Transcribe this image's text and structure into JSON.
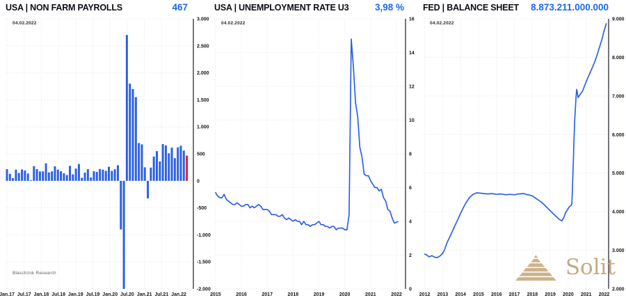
{
  "branding": {
    "research_label": "Blaschzok Research",
    "logo_text": "Solit",
    "logo_color": "#cdb28a"
  },
  "charts": [
    {
      "title": "USA | NON FARM PAYROLLS",
      "value": "467",
      "date_label": "04.02.2022",
      "chart_data": {
        "type": "bar",
        "title": "USA | NON FARM PAYROLLS",
        "latest_value": 467,
        "unit": "thousands (monthly change)",
        "ylim": [
          -2000,
          3000
        ],
        "y_tick_labels": [
          "3.000",
          "2.500",
          "2.000",
          "1.500",
          "1.000",
          "500",
          "0",
          "-500",
          "-1.000",
          "-1.500",
          "-2.000"
        ],
        "x_tick_labels": [
          "Jan.17",
          "Jul.17",
          "Jan.18",
          "Jul.18",
          "Jan.19",
          "Jul.19",
          "Jan.20",
          "Jul.20",
          "Jan.21",
          "Jul.21",
          "Jan.22"
        ],
        "categories_note": "monthly bars Jan 2017 - Jan 2022, Apr 2020 clipped at axis minimum",
        "values": [
          216,
          130,
          50,
          207,
          145,
          210,
          190,
          135,
          14,
          271,
          216,
          175,
          176,
          324,
          155,
          175,
          268,
          208,
          178,
          140,
          108,
          277,
          119,
          227,
          312,
          56,
          153,
          216,
          62,
          178,
          166,
          219,
          208,
          185,
          261,
          184,
          214,
          289,
          -900,
          -2000,
          2700,
          1800,
          1700,
          1550,
          700,
          675,
          250,
          -325,
          245,
          450,
          550,
          360,
          680,
          655,
          510,
          615,
          420,
          620,
          650,
          560,
          467
        ],
        "bar_color": "#2b60e8",
        "last_bar_color": "#ee1c25",
        "grid": true,
        "axis_side": "right"
      }
    },
    {
      "title": "USA | UNEMPLOYMENT RATE U3",
      "value": "3,98 %",
      "date_label": "04.02.2022",
      "chart_data": {
        "type": "line",
        "title": "USA | UNEMPLOYMENT RATE U3",
        "latest_value": 3.98,
        "unit": "percent",
        "ylim": [
          0,
          16
        ],
        "y_tick_labels": [
          "16",
          "14",
          "12",
          "10",
          "8",
          "6",
          "4",
          "2",
          "0"
        ],
        "x_range": [
          2014.95,
          2022.35
        ],
        "x_ticks": [
          2015,
          2016,
          2017,
          2018,
          2019,
          2020,
          2021,
          2022
        ],
        "line_color": "#2b60e8",
        "grid": true,
        "axis_side": "right",
        "points": [
          [
            2015.0,
            5.7
          ],
          [
            2015.083,
            5.5
          ],
          [
            2015.167,
            5.4
          ],
          [
            2015.25,
            5.4
          ],
          [
            2015.333,
            5.6
          ],
          [
            2015.417,
            5.3
          ],
          [
            2015.5,
            5.2
          ],
          [
            2015.583,
            5.1
          ],
          [
            2015.667,
            5.0
          ],
          [
            2015.75,
            5.0
          ],
          [
            2015.833,
            5.1
          ],
          [
            2015.917,
            5.0
          ],
          [
            2016.0,
            4.9
          ],
          [
            2016.083,
            4.9
          ],
          [
            2016.167,
            5.0
          ],
          [
            2016.25,
            5.0
          ],
          [
            2016.333,
            4.8
          ],
          [
            2016.417,
            4.9
          ],
          [
            2016.5,
            4.8
          ],
          [
            2016.583,
            4.9
          ],
          [
            2016.667,
            5.0
          ],
          [
            2016.75,
            4.9
          ],
          [
            2016.833,
            4.7
          ],
          [
            2016.917,
            4.7
          ],
          [
            2017.0,
            4.7
          ],
          [
            2017.083,
            4.6
          ],
          [
            2017.167,
            4.4
          ],
          [
            2017.25,
            4.4
          ],
          [
            2017.333,
            4.4
          ],
          [
            2017.417,
            4.3
          ],
          [
            2017.5,
            4.3
          ],
          [
            2017.583,
            4.4
          ],
          [
            2017.667,
            4.2
          ],
          [
            2017.75,
            4.1
          ],
          [
            2017.833,
            4.2
          ],
          [
            2017.917,
            4.1
          ],
          [
            2018.0,
            4.0
          ],
          [
            2018.083,
            4.1
          ],
          [
            2018.167,
            4.0
          ],
          [
            2018.25,
            4.0
          ],
          [
            2018.333,
            3.8
          ],
          [
            2018.417,
            4.0
          ],
          [
            2018.5,
            3.8
          ],
          [
            2018.583,
            3.8
          ],
          [
            2018.667,
            3.7
          ],
          [
            2018.75,
            3.8
          ],
          [
            2018.833,
            3.8
          ],
          [
            2018.917,
            3.9
          ],
          [
            2019.0,
            4.0
          ],
          [
            2019.083,
            3.8
          ],
          [
            2019.167,
            3.8
          ],
          [
            2019.25,
            3.7
          ],
          [
            2019.333,
            3.7
          ],
          [
            2019.417,
            3.6
          ],
          [
            2019.5,
            3.7
          ],
          [
            2019.583,
            3.7
          ],
          [
            2019.667,
            3.5
          ],
          [
            2019.75,
            3.6
          ],
          [
            2019.833,
            3.6
          ],
          [
            2019.917,
            3.6
          ],
          [
            2020.0,
            3.5
          ],
          [
            2020.083,
            3.5
          ],
          [
            2020.167,
            4.4
          ],
          [
            2020.25,
            14.8
          ],
          [
            2020.333,
            13.2
          ],
          [
            2020.417,
            11.0
          ],
          [
            2020.5,
            10.2
          ],
          [
            2020.583,
            8.4
          ],
          [
            2020.667,
            7.8
          ],
          [
            2020.75,
            6.8
          ],
          [
            2020.833,
            6.7
          ],
          [
            2020.917,
            6.7
          ],
          [
            2021.0,
            6.4
          ],
          [
            2021.083,
            6.2
          ],
          [
            2021.167,
            6.0
          ],
          [
            2021.25,
            6.0
          ],
          [
            2021.333,
            5.8
          ],
          [
            2021.417,
            5.9
          ],
          [
            2021.5,
            5.4
          ],
          [
            2021.583,
            5.2
          ],
          [
            2021.667,
            4.7
          ],
          [
            2021.75,
            4.6
          ],
          [
            2021.833,
            4.2
          ],
          [
            2021.917,
            3.9
          ],
          [
            2022.05,
            3.98
          ]
        ]
      }
    },
    {
      "title": "FED | BALANCE SHEET",
      "value": "8.873.211.000.000",
      "date_label": "04.02.2022",
      "chart_data": {
        "type": "line",
        "title": "FED | BALANCE SHEET",
        "latest_value": 8873211000000,
        "unit": "billions USD (axis)",
        "ylim": [
          2000,
          9000
        ],
        "y_tick_labels": [
          "9.000",
          "8.000",
          "7.000",
          "6.000",
          "5.000",
          "4.000",
          "3.000",
          "2.000"
        ],
        "x_range": [
          2011.9,
          2022.25
        ],
        "x_ticks": [
          2012,
          2013,
          2014,
          2015,
          2016,
          2017,
          2018,
          2019,
          2020,
          2021,
          2022
        ],
        "line_color": "#2b60e8",
        "grid": true,
        "axis_side": "right",
        "points": [
          [
            2012.0,
            2900
          ],
          [
            2012.1,
            2880
          ],
          [
            2012.25,
            2830
          ],
          [
            2012.4,
            2860
          ],
          [
            2012.55,
            2820
          ],
          [
            2012.7,
            2810
          ],
          [
            2012.85,
            2850
          ],
          [
            2013.0,
            2920
          ],
          [
            2013.1,
            3010
          ],
          [
            2013.25,
            3200
          ],
          [
            2013.4,
            3350
          ],
          [
            2013.55,
            3500
          ],
          [
            2013.7,
            3650
          ],
          [
            2013.85,
            3800
          ],
          [
            2014.0,
            3960
          ],
          [
            2014.15,
            4100
          ],
          [
            2014.3,
            4230
          ],
          [
            2014.5,
            4370
          ],
          [
            2014.7,
            4450
          ],
          [
            2014.9,
            4490
          ],
          [
            2015.1,
            4480
          ],
          [
            2015.3,
            4470
          ],
          [
            2015.5,
            4460
          ],
          [
            2015.75,
            4470
          ],
          [
            2016.0,
            4450
          ],
          [
            2016.25,
            4460
          ],
          [
            2016.5,
            4440
          ],
          [
            2016.75,
            4450
          ],
          [
            2017.0,
            4440
          ],
          [
            2017.25,
            4460
          ],
          [
            2017.5,
            4470
          ],
          [
            2017.75,
            4440
          ],
          [
            2018.0,
            4410
          ],
          [
            2018.25,
            4330
          ],
          [
            2018.5,
            4250
          ],
          [
            2018.75,
            4140
          ],
          [
            2019.0,
            4020
          ],
          [
            2019.25,
            3910
          ],
          [
            2019.5,
            3800
          ],
          [
            2019.65,
            3760
          ],
          [
            2019.75,
            3850
          ],
          [
            2019.85,
            3970
          ],
          [
            2019.95,
            4050
          ],
          [
            2020.05,
            4120
          ],
          [
            2020.15,
            4160
          ],
          [
            2020.2,
            4200
          ],
          [
            2020.24,
            4650
          ],
          [
            2020.28,
            5250
          ],
          [
            2020.32,
            5850
          ],
          [
            2020.36,
            6350
          ],
          [
            2020.4,
            6700
          ],
          [
            2020.44,
            7000
          ],
          [
            2020.47,
            7170
          ],
          [
            2020.5,
            7100
          ],
          [
            2020.55,
            6960
          ],
          [
            2020.62,
            7010
          ],
          [
            2020.7,
            7060
          ],
          [
            2020.8,
            7130
          ],
          [
            2020.9,
            7250
          ],
          [
            2021.0,
            7370
          ],
          [
            2021.1,
            7480
          ],
          [
            2021.2,
            7580
          ],
          [
            2021.3,
            7690
          ],
          [
            2021.4,
            7800
          ],
          [
            2021.5,
            7920
          ],
          [
            2021.6,
            8050
          ],
          [
            2021.7,
            8200
          ],
          [
            2021.8,
            8350
          ],
          [
            2021.9,
            8500
          ],
          [
            2021.97,
            8650
          ],
          [
            2022.05,
            8760
          ],
          [
            2022.12,
            8873
          ]
        ]
      }
    }
  ]
}
